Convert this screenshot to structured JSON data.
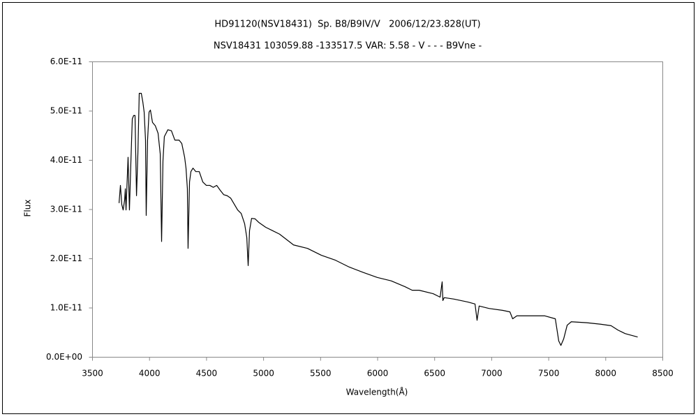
{
  "chart_data": {
    "type": "line",
    "title": "HD91120(NSV18431)  Sp. B8/B9IV/V   2006/12/23.828(UT)",
    "subtitle": "NSV18431 103059.88 -133517.5 VAR: 5.58 - V - - - B9Vne -",
    "x_label": "Wavelength(Å)",
    "y_label": "Flux",
    "color": "#000000",
    "x": [
      3733,
      3745,
      3757,
      3769,
      3782,
      3788,
      3794,
      3812,
      3824,
      3837,
      3849,
      3861,
      3873,
      3886,
      3898,
      3910,
      3928,
      3941,
      3953,
      3965,
      3971,
      3983,
      3996,
      4008,
      4026,
      4051,
      4075,
      4094,
      4106,
      4118,
      4130,
      4161,
      4192,
      4222,
      4259,
      4283,
      4308,
      4320,
      4332,
      4338,
      4351,
      4363,
      4381,
      4406,
      4436,
      4467,
      4498,
      4528,
      4559,
      4589,
      4620,
      4651,
      4681,
      4712,
      4773,
      4804,
      4834,
      4853,
      4865,
      4877,
      4895,
      4926,
      4957,
      5018,
      5079,
      5140,
      5263,
      5385,
      5507,
      5630,
      5752,
      5875,
      5997,
      6119,
      6242,
      6303,
      6364,
      6487,
      6548,
      6560,
      6566,
      6572,
      6584,
      6670,
      6793,
      6854,
      6872,
      6890,
      6976,
      7099,
      7160,
      7184,
      7221,
      7343,
      7466,
      7558,
      7588,
      7607,
      7631,
      7662,
      7698,
      7833,
      7955,
      8047,
      8108,
      8170,
      8231,
      8280
    ],
    "values": [
      3.13e-11,
      3.49e-11,
      3.1e-11,
      2.99e-11,
      3.2e-11,
      3.42e-11,
      2.99e-11,
      4.06e-11,
      2.99e-11,
      3.99e-11,
      4.84e-11,
      4.91e-11,
      4.91e-11,
      3.28e-11,
      4.13e-11,
      5.36e-11,
      5.36e-11,
      5.19e-11,
      4.98e-11,
      4.41e-11,
      2.88e-11,
      4.41e-11,
      4.98e-11,
      5.02e-11,
      4.77e-11,
      4.7e-11,
      4.55e-11,
      4.13e-11,
      2.35e-11,
      3.99e-11,
      4.48e-11,
      4.62e-11,
      4.6e-11,
      4.41e-11,
      4.41e-11,
      4.34e-11,
      4.06e-11,
      3.84e-11,
      3.42e-11,
      2.21e-11,
      3.56e-11,
      3.77e-11,
      3.84e-11,
      3.77e-11,
      3.77e-11,
      3.56e-11,
      3.49e-11,
      3.49e-11,
      3.45e-11,
      3.49e-11,
      3.39e-11,
      3.3e-11,
      3.28e-11,
      3.23e-11,
      2.99e-11,
      2.92e-11,
      2.71e-11,
      2.43e-11,
      1.86e-11,
      2.57e-11,
      2.82e-11,
      2.81e-11,
      2.74e-11,
      2.64e-11,
      2.57e-11,
      2.5e-11,
      2.28e-11,
      2.21e-11,
      2.07e-11,
      1.97e-11,
      1.83e-11,
      1.72e-11,
      1.62e-11,
      1.55e-11,
      1.43e-11,
      1.36e-11,
      1.36e-11,
      1.29e-11,
      1.22e-11,
      1.43e-11,
      1.53e-11,
      1.15e-11,
      1.21e-11,
      1.18e-11,
      1.12e-11,
      1.08e-11,
      7.5e-12,
      1.04e-11,
      9.9e-12,
      9.5e-12,
      9.2e-12,
      7.8e-12,
      8.4e-12,
      8.4e-12,
      8.4e-12,
      7.8e-12,
      3.3e-12,
      2.4e-12,
      3.7e-12,
      6.5e-12,
      7.2e-12,
      7e-12,
      6.7e-12,
      6.4e-12,
      5.5e-12,
      4.8e-12,
      4.4e-12,
      4.1e-12
    ],
    "xlim": [
      3500,
      8500
    ],
    "xticks": [
      3500,
      4000,
      4500,
      5000,
      5500,
      6000,
      6500,
      7000,
      7500,
      8000,
      8500
    ],
    "ylim": [
      0,
      6e-11
    ],
    "yticks": [
      {
        "value": 0,
        "label": "0.0E+00"
      },
      {
        "value": 1e-11,
        "label": "1.0E-11"
      },
      {
        "value": 2e-11,
        "label": "2.0E-11"
      },
      {
        "value": 3e-11,
        "label": "3.0E-11"
      },
      {
        "value": 4e-11,
        "label": "4.0E-11"
      },
      {
        "value": 5e-11,
        "label": "5.0E-11"
      },
      {
        "value": 6e-11,
        "label": "6.0E-11"
      }
    ],
    "grid": false
  }
}
